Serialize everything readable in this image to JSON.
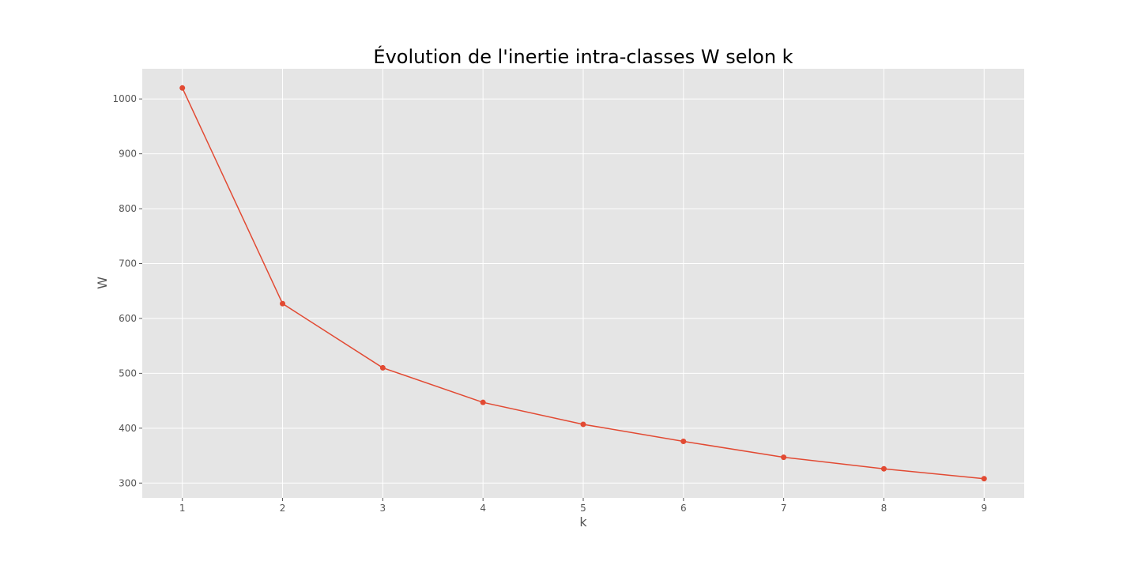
{
  "chart_data": {
    "type": "line",
    "title": "Évolution de l'inertie intra-classes W selon k",
    "xlabel": "k",
    "ylabel": "W",
    "x": [
      1,
      2,
      3,
      4,
      5,
      6,
      7,
      8,
      9
    ],
    "xticks": [
      "1",
      "2",
      "3",
      "4",
      "5",
      "6",
      "7",
      "8",
      "9"
    ],
    "xlim": [
      0.6,
      9.4
    ],
    "ylim": [
      273,
      1055
    ],
    "yticks": [
      "300",
      "400",
      "500",
      "600",
      "700",
      "800",
      "900",
      "1000"
    ],
    "series": [
      {
        "values": [
          1020,
          627,
          510,
          447,
          407,
          376,
          347,
          326,
          308
        ]
      }
    ],
    "grid": true,
    "colors": {
      "background": "#e5e5e5",
      "grid": "#ffffff",
      "line": "#e24a33",
      "text": "#555555"
    },
    "marker": "circle"
  }
}
